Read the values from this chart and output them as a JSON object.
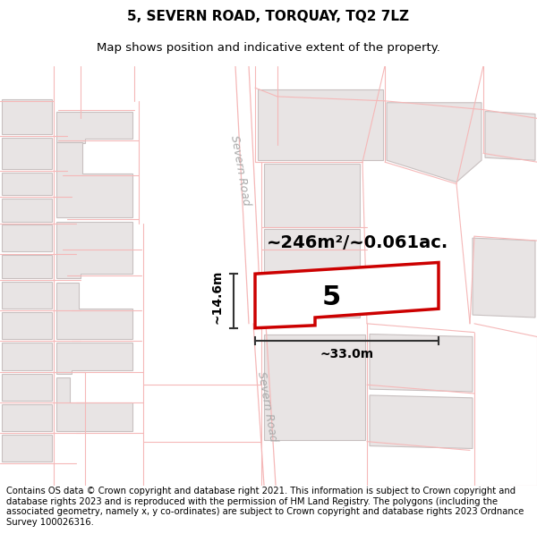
{
  "title": "5, SEVERN ROAD, TORQUAY, TQ2 7LZ",
  "subtitle": "Map shows position and indicative extent of the property.",
  "footer": "Contains OS data © Crown copyright and database right 2021. This information is subject to Crown copyright and database rights 2023 and is reproduced with the permission of HM Land Registry. The polygons (including the associated geometry, namely x, y co-ordinates) are subject to Crown copyright and database rights 2023 Ordnance Survey 100026316.",
  "map_bg": "#ffffff",
  "road_line_color": "#f5b8b8",
  "building_fill": "#e8e4e4",
  "building_stroke": "#c8c0c0",
  "highlight_fill": "#ffffff",
  "highlight_stroke": "#cc0000",
  "area_label": "~246m²/~0.061ac.",
  "number_label": "5",
  "dim_width": "~33.0m",
  "dim_height": "~14.6m",
  "severn_road_label": "Severn Road",
  "title_fontsize": 11,
  "subtitle_fontsize": 9.5,
  "footer_fontsize": 7.2,
  "area_fontsize": 14,
  "num_fontsize": 22,
  "dim_fontsize": 10,
  "road_label_fontsize": 9,
  "dim_color": "#333333",
  "road_label_color": "#aaaaaa"
}
